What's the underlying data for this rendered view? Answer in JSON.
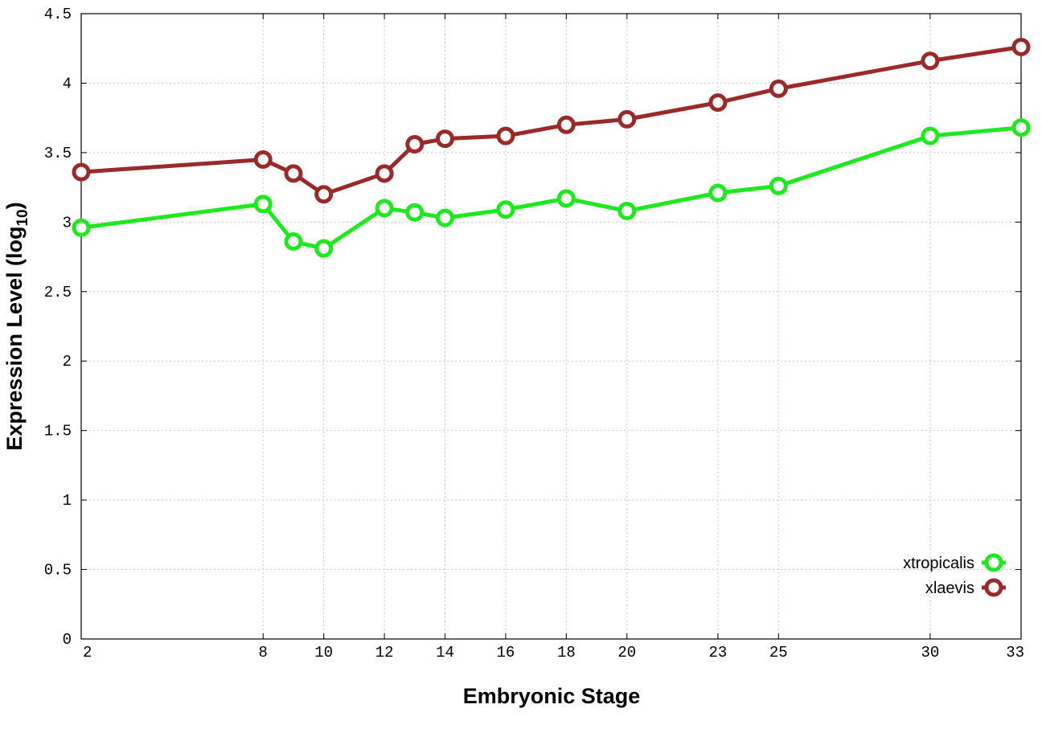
{
  "chart_data": {
    "type": "line",
    "title": "",
    "xlabel": "Embryonic Stage",
    "ylabel": "Expression Level (log",
    "ylabel_sub": "10",
    "ylabel_close": ")",
    "x": [
      2,
      8,
      9,
      10,
      12,
      13,
      14,
      16,
      18,
      20,
      23,
      25,
      30,
      33
    ],
    "x_ticks": [
      2,
      8,
      10,
      12,
      14,
      16,
      18,
      20,
      23,
      25,
      30,
      33
    ],
    "x_tick_labels": [
      "2",
      "8",
      "10",
      "12",
      "14",
      "16",
      "18",
      "20",
      "23",
      "25",
      "30",
      "33"
    ],
    "y_ticks": [
      0,
      0.5,
      1,
      1.5,
      2,
      2.5,
      3,
      3.5,
      4,
      4.5
    ],
    "y_tick_labels": [
      "0",
      "0.5",
      "1",
      "1.5",
      "2",
      "2.5",
      "3",
      "3.5",
      "4",
      "4.5"
    ],
    "ylim": [
      0,
      4.5
    ],
    "grid": true,
    "legend_position": "bottom-right",
    "series": [
      {
        "name": "xtropicalis",
        "color": "#1ee81e",
        "values": [
          2.96,
          3.13,
          2.86,
          2.81,
          3.1,
          3.07,
          3.03,
          3.09,
          3.17,
          3.08,
          3.21,
          3.26,
          3.62,
          3.68
        ]
      },
      {
        "name": "xlaevis",
        "color": "#9a2a2a",
        "values": [
          3.36,
          3.45,
          3.35,
          3.2,
          3.35,
          3.56,
          3.6,
          3.62,
          3.7,
          3.74,
          3.86,
          3.96,
          4.16,
          4.26
        ]
      }
    ]
  }
}
